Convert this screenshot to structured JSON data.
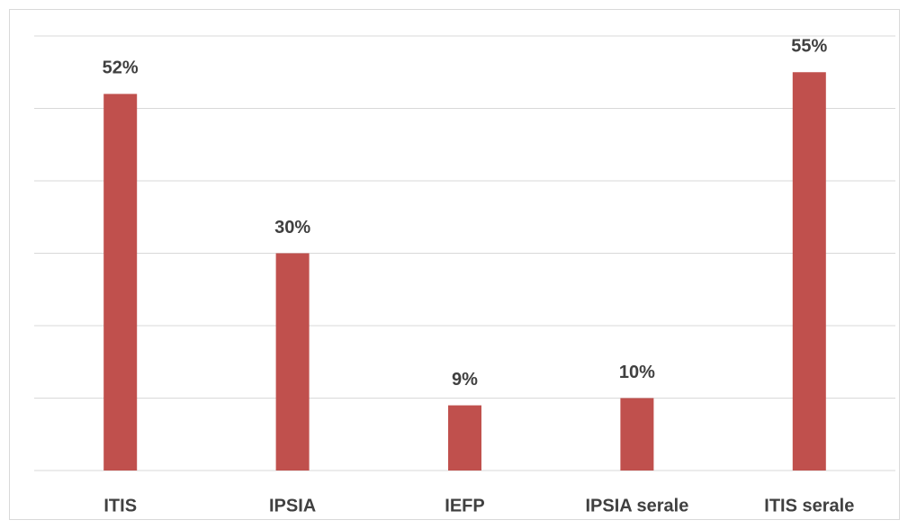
{
  "chart_data": {
    "type": "bar",
    "categories": [
      "ITIS",
      "IPSIA",
      "IEFP",
      "IPSIA serale",
      "ITIS serale"
    ],
    "values": [
      52,
      30,
      9,
      10,
      55
    ],
    "value_labels": [
      "52%",
      "30%",
      "9%",
      "10%",
      "55%"
    ],
    "color": "#c0504d",
    "ylim": [
      0,
      60
    ],
    "yticks": [
      0,
      10,
      20,
      30,
      40,
      50,
      60
    ],
    "grid": true
  }
}
